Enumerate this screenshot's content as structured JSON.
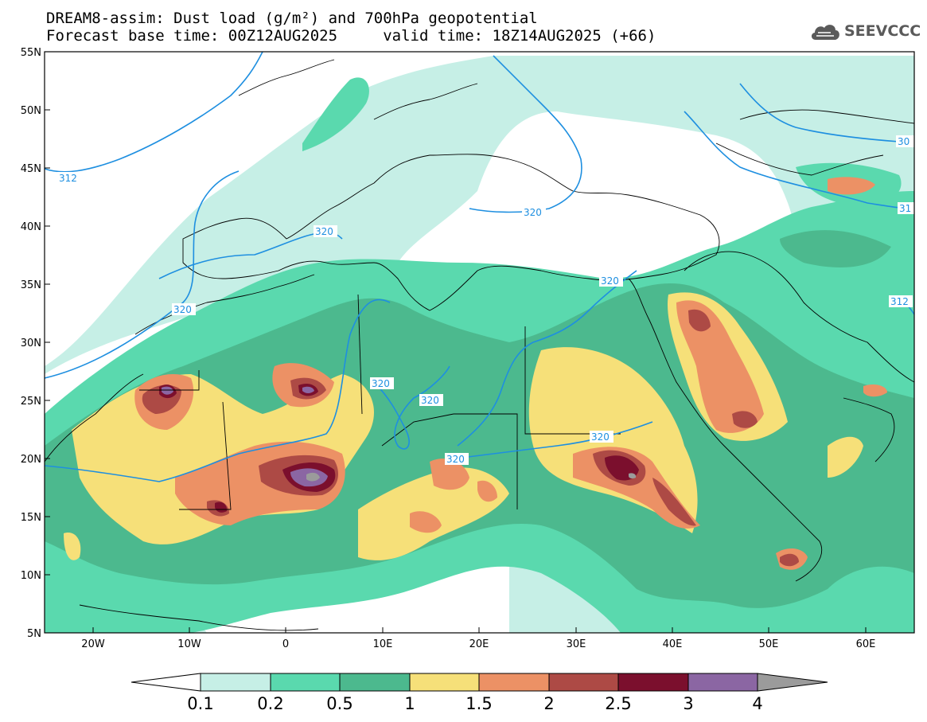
{
  "header": {
    "title_line1": "DREAM8-assim: Dust load (g/m²) and 700hPa geopotential",
    "title_line2": "Forecast base time: 00Z12AUG2025     valid time: 18Z14AUG2025 (+66)"
  },
  "logo": {
    "text": "SEEVCCC",
    "icon": "cloud-logo-icon"
  },
  "axes": {
    "lat_labels": [
      "55N",
      "50N",
      "45N",
      "40N",
      "35N",
      "30N",
      "25N",
      "20N",
      "15N",
      "10N",
      "5N"
    ],
    "lon_labels": [
      "20W",
      "10W",
      "0",
      "10E",
      "20E",
      "30E",
      "40E",
      "50E",
      "60E"
    ]
  },
  "contour_labels": [
    "312",
    "30",
    "320",
    "320",
    "320",
    "31",
    "320",
    "312",
    "320",
    "320",
    "320",
    "320"
  ],
  "colorbar": {
    "levels": [
      "0.1",
      "0.2",
      "0.5",
      "1",
      "1.5",
      "2",
      "2.5",
      "3",
      "4"
    ],
    "colors": [
      "#ffffff",
      "#c6efe6",
      "#5ad9ae",
      "#4cb98e",
      "#f6e079",
      "#ec9165",
      "#ad4a45",
      "#7b0f2d",
      "#8b66a3",
      "#9b9b9b"
    ]
  },
  "map_colors": {
    "contour": "#1e8fe0",
    "coast": "#000000"
  }
}
